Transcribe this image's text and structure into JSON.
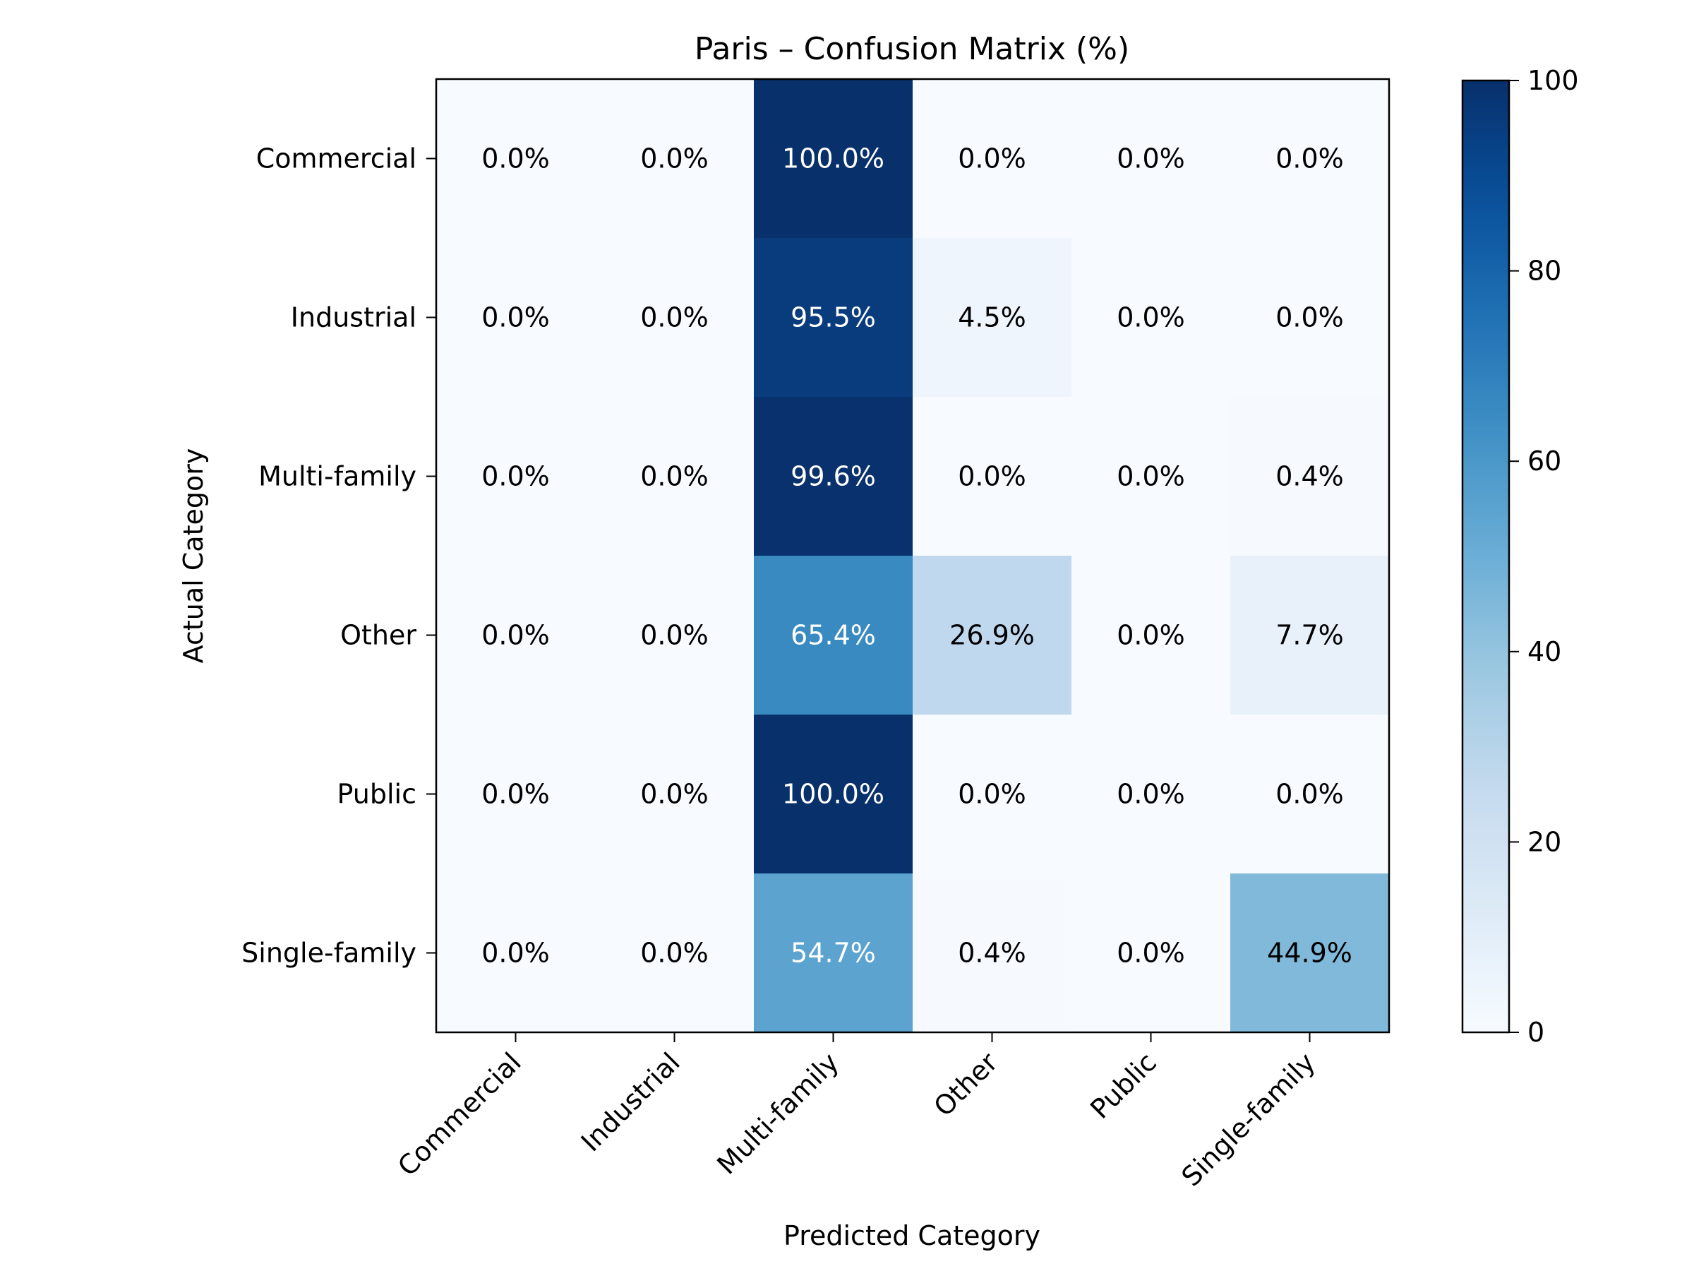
{
  "chart_data": {
    "type": "heatmap",
    "title": "Paris – Confusion Matrix (%)",
    "xlabel": "Predicted Category",
    "ylabel": "Actual Category",
    "x_categories": [
      "Commercial",
      "Industrial",
      "Multi-family",
      "Other",
      "Public",
      "Single-family"
    ],
    "y_categories": [
      "Commercial",
      "Industrial",
      "Multi-family",
      "Other",
      "Public",
      "Single-family"
    ],
    "values": [
      [
        0.0,
        0.0,
        100.0,
        0.0,
        0.0,
        0.0
      ],
      [
        0.0,
        0.0,
        95.5,
        4.5,
        0.0,
        0.0
      ],
      [
        0.0,
        0.0,
        99.6,
        0.0,
        0.0,
        0.4
      ],
      [
        0.0,
        0.0,
        65.4,
        26.9,
        0.0,
        7.7
      ],
      [
        0.0,
        0.0,
        100.0,
        0.0,
        0.0,
        0.0
      ],
      [
        0.0,
        0.0,
        54.7,
        0.4,
        0.0,
        44.9
      ]
    ],
    "labels": [
      [
        "0.0%",
        "0.0%",
        "100.0%",
        "0.0%",
        "0.0%",
        "0.0%"
      ],
      [
        "0.0%",
        "0.0%",
        "95.5%",
        "4.5%",
        "0.0%",
        "0.0%"
      ],
      [
        "0.0%",
        "0.0%",
        "99.6%",
        "0.0%",
        "0.0%",
        "0.4%"
      ],
      [
        "0.0%",
        "0.0%",
        "65.4%",
        "26.9%",
        "0.0%",
        "7.7%"
      ],
      [
        "0.0%",
        "0.0%",
        "100.0%",
        "0.0%",
        "0.0%",
        "0.0%"
      ],
      [
        "0.0%",
        "0.0%",
        "54.7%",
        "0.4%",
        "0.0%",
        "44.9%"
      ]
    ],
    "colorbar": {
      "range": [
        0,
        100
      ],
      "ticks": [
        0,
        20,
        40,
        60,
        80,
        100
      ],
      "colormap": "Blues"
    },
    "grid": false
  }
}
